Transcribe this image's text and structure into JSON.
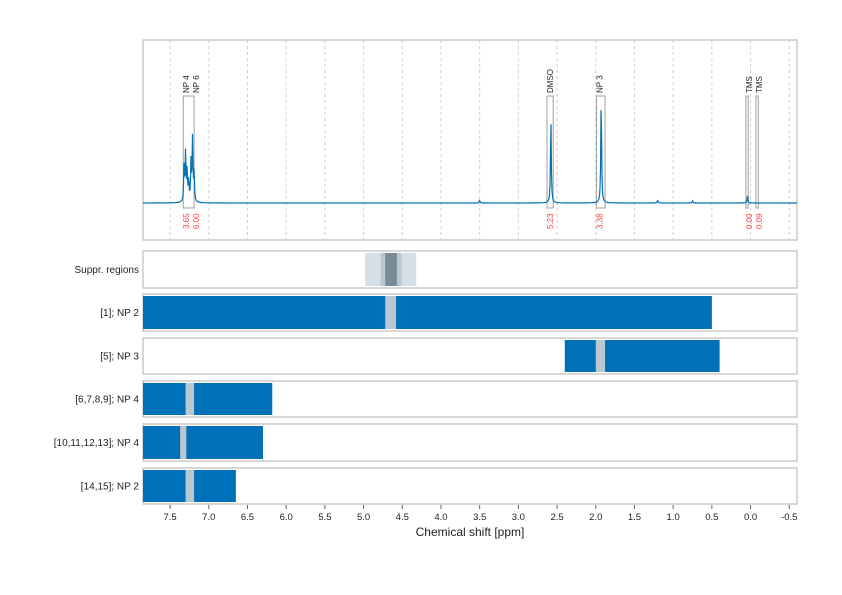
{
  "chart_data": {
    "type": "line",
    "xlabel": "Chemical shift [ppm]",
    "xlim": [
      7.85,
      -0.6
    ],
    "xticks": [
      7.5,
      7.0,
      6.5,
      6.0,
      5.5,
      5.0,
      4.5,
      4.0,
      3.5,
      3.0,
      2.5,
      2.0,
      1.5,
      1.0,
      0.5,
      0.0,
      -0.5
    ],
    "xtick_labels": [
      "7.5",
      "7.0",
      "6.5",
      "6.0",
      "5.5",
      "5.0",
      "4.5",
      "4.0",
      "3.5",
      "3.0",
      "2.5",
      "2.0",
      "1.5",
      "1.0",
      "0.5",
      "0.0",
      "-0.5"
    ],
    "grid": true,
    "colors": {
      "spectrum": "#0070b8",
      "bar": "#0070b8",
      "gap": "#b9c7d0",
      "integral": "#ff3b3b",
      "box": "#a0a0a0"
    },
    "spectrum_peaks": [
      {
        "ppm": 7.32,
        "height": 0.25
      },
      {
        "ppm": 7.3,
        "height": 0.35
      },
      {
        "ppm": 7.28,
        "height": 0.22
      },
      {
        "ppm": 7.26,
        "height": 0.15
      },
      {
        "ppm": 7.23,
        "height": 0.28
      },
      {
        "ppm": 7.21,
        "height": 0.45
      },
      {
        "ppm": 7.19,
        "height": 0.2
      },
      {
        "ppm": 2.58,
        "height": 0.6
      },
      {
        "ppm": 1.93,
        "height": 0.77
      },
      {
        "ppm": 0.04,
        "height": 0.05
      },
      {
        "ppm": 3.5,
        "height": 0.02
      },
      {
        "ppm": 1.2,
        "height": 0.02
      },
      {
        "ppm": 0.75,
        "height": 0.015
      }
    ],
    "peak_regions": [
      {
        "labels": [
          "NP 4",
          "NP 6"
        ],
        "from": 7.33,
        "to": 7.19,
        "integrals": [
          "3.65",
          "6.00"
        ]
      },
      {
        "labels": [
          "DMSO"
        ],
        "from": 2.63,
        "to": 2.55,
        "integrals": [
          "5.23"
        ]
      },
      {
        "labels": [
          "NP 3"
        ],
        "from": 1.99,
        "to": 1.88,
        "integrals": [
          "3.38"
        ]
      },
      {
        "labels": [
          "TMS"
        ],
        "from": 0.06,
        "to": 0.03,
        "integrals": [
          "0.00"
        ]
      },
      {
        "labels": [
          "TMS"
        ],
        "from": -0.07,
        "to": -0.1,
        "integrals": [
          "0.09"
        ]
      }
    ],
    "suppressed_regions": [
      {
        "from": 4.98,
        "to": 4.32,
        "color": "#d6dfe6"
      },
      {
        "from": 4.78,
        "to": 4.51,
        "color": "#b9c7d0"
      },
      {
        "from": 4.72,
        "to": 4.57,
        "color": "#7a8a96"
      }
    ],
    "rows_label_suppressed": "Suppr. regions",
    "rows": [
      {
        "label": "[1]; NP 2",
        "from": 7.85,
        "to": 0.5,
        "gap": [
          4.72,
          4.58
        ]
      },
      {
        "label": "[5]; NP 3",
        "from": 2.4,
        "to": 0.4,
        "gap": [
          2.0,
          1.88
        ]
      },
      {
        "label": "[6,7,8,9]; NP 4",
        "from": 7.85,
        "to": 6.18,
        "gap": [
          7.3,
          7.19
        ]
      },
      {
        "label": "[10,11,12,13]; NP 4",
        "from": 7.85,
        "to": 6.3,
        "gap": [
          7.37,
          7.29
        ]
      },
      {
        "label": "[14,15]; NP 2",
        "from": 7.85,
        "to": 6.65,
        "gap": [
          7.3,
          7.19
        ]
      }
    ]
  }
}
